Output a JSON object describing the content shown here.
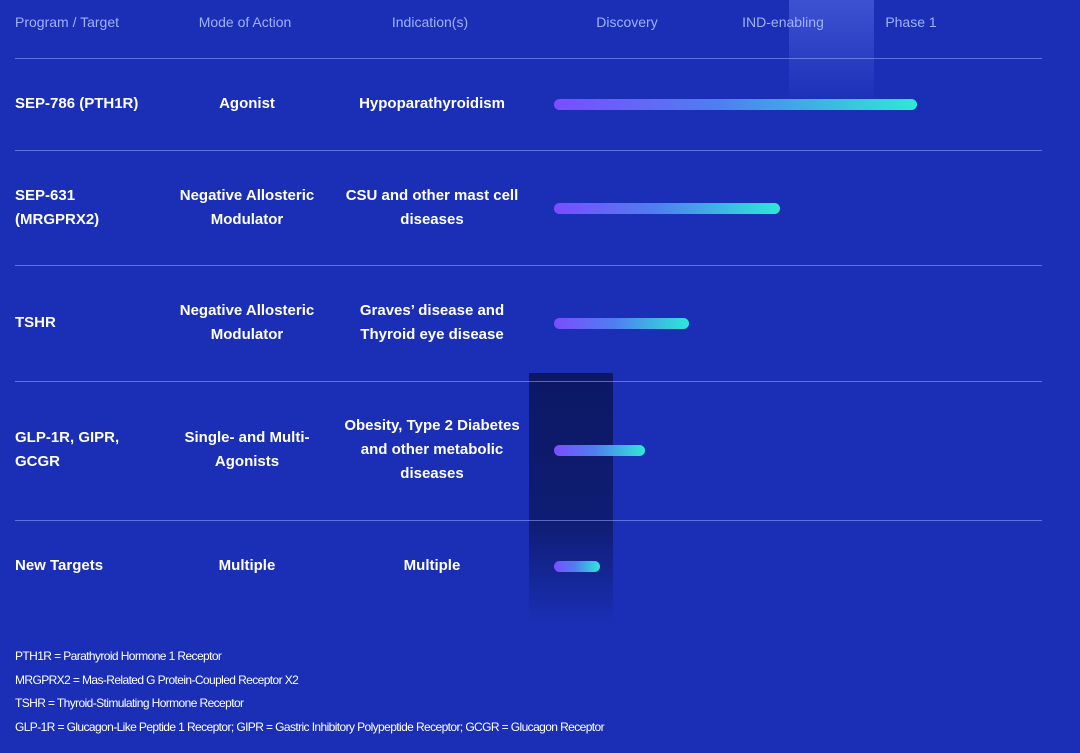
{
  "chart_data": {
    "type": "table",
    "columns": [
      "Program / Target",
      "Mode of Action",
      "Indication(s)",
      "Discovery",
      "IND-enabling",
      "Phase 1"
    ],
    "rows": [
      {
        "program": [
          "SEP-786 (PTH1R)"
        ],
        "moa": [
          "Agonist"
        ],
        "indication": [
          "Hypoparathyroidism"
        ],
        "progress": 0.955
      },
      {
        "program": [
          "SEP-631",
          "(MRGPRX2)"
        ],
        "moa": [
          "Negative Allosteric",
          "Modulator"
        ],
        "indication": [
          "CSU and other mast cell",
          "diseases"
        ],
        "progress": 0.595
      },
      {
        "program": [
          "TSHR"
        ],
        "moa": [
          "Negative Allosteric",
          "Modulator"
        ],
        "indication": [
          "Graves’ disease and",
          "Thyroid eye disease"
        ],
        "progress": 0.355
      },
      {
        "program": [
          "GLP-1R, GIPR,",
          "GCGR"
        ],
        "moa": [
          "Single- and Multi-",
          "Agonists"
        ],
        "indication": [
          "Obesity, Type 2 Diabetes",
          "and other metabolic",
          "diseases"
        ],
        "progress": 0.24
      },
      {
        "program": [
          "New Targets"
        ],
        "moa": [
          "Multiple"
        ],
        "indication": [
          "Multiple"
        ],
        "progress": 0.12
      }
    ]
  },
  "footnotes": [
    "PTH1R = Parathyroid Hormone 1 Receptor",
    "MRGPRX2 = Mas-Related G Protein-Coupled Receptor X2",
    "TSHR = Thyroid-Stimulating Hormone Receptor",
    "GLP-1R = Glucagon-Like Peptide 1 Receptor; GIPR = Gastric Inhibitory Polypeptide Receptor; GCGR = Glucagon Receptor"
  ],
  "colors": {
    "background": "#1a2fb5",
    "header_text": "#9fb0ff",
    "bar_start": "#7b4dff",
    "bar_end": "#2ee8d8"
  }
}
